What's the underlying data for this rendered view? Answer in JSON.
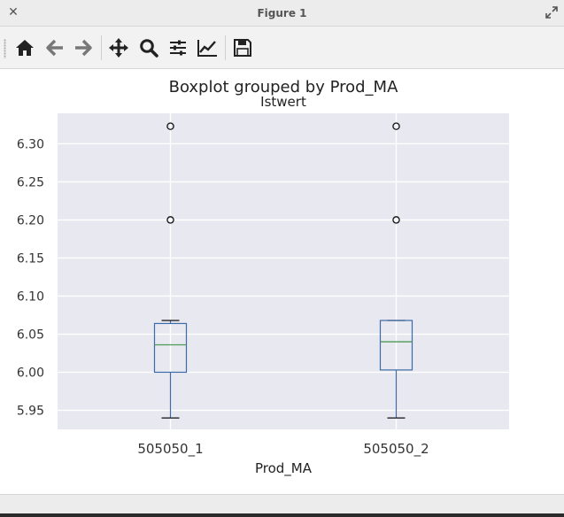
{
  "window": {
    "title": "Figure 1"
  },
  "toolbar": {
    "buttons": [
      {
        "name": "home",
        "icon": "home-icon"
      },
      {
        "name": "back",
        "icon": "arrow-left-icon"
      },
      {
        "name": "forward",
        "icon": "arrow-right-icon"
      },
      {
        "name": "pan",
        "icon": "move-icon"
      },
      {
        "name": "zoom",
        "icon": "magnifier-icon"
      },
      {
        "name": "configure-subplots",
        "icon": "sliders-icon"
      },
      {
        "name": "edit-axis",
        "icon": "line-chart-icon"
      },
      {
        "name": "save",
        "icon": "floppy-disk-icon"
      }
    ]
  },
  "chart_data": {
    "type": "boxplot",
    "suptitle": "Boxplot grouped by Prod_MA",
    "title": "Istwert",
    "xlabel": "Prod_MA",
    "ylabel": "",
    "ylim": [
      5.925,
      6.34
    ],
    "yticks": [
      "5.95",
      "6.00",
      "6.05",
      "6.10",
      "6.15",
      "6.20",
      "6.25",
      "6.30"
    ],
    "ytick_values": [
      5.95,
      6.0,
      6.05,
      6.1,
      6.15,
      6.2,
      6.25,
      6.3
    ],
    "grid": true,
    "background": "#e8e8f0",
    "colors": {
      "box": "#3d6aa8",
      "median": "#4c9a55",
      "grid": "#ffffff"
    },
    "groups": [
      {
        "name": "505050_1",
        "whisker_low": 5.94,
        "q1": 6.0,
        "median": 6.036,
        "q3": 6.064,
        "whisker_high": 6.068,
        "outliers": [
          6.2,
          6.323
        ]
      },
      {
        "name": "505050_2",
        "whisker_low": 5.94,
        "q1": 6.003,
        "median": 6.04,
        "q3": 6.068,
        "whisker_high": 6.068,
        "outliers": [
          6.2,
          6.323
        ]
      }
    ]
  }
}
